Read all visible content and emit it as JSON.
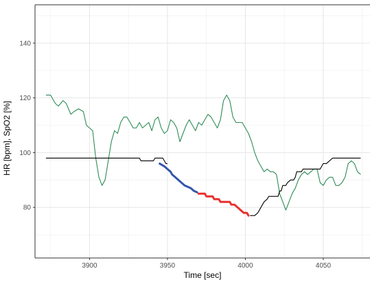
{
  "chart_data": {
    "type": "line",
    "title": "",
    "xlabel": "Time [sec]",
    "ylabel": "HR [bpm], SpO2 [%]",
    "xlim": [
      3865,
      4080
    ],
    "ylim": [
      61.5,
      154
    ],
    "x_ticks": [
      3900,
      3950,
      4000,
      4050
    ],
    "y_ticks": [
      80,
      100,
      120,
      140
    ],
    "grid": true,
    "legend": "none",
    "colors": {
      "hr": "#2e8b57",
      "spo2": "#000000",
      "decline_early": "#3355aa",
      "decline_late": "#e8312f",
      "grid_major": "#e6e6e6",
      "grid_minor": "#f2f2f2",
      "axis": "#333333"
    },
    "series": [
      {
        "color": "#2e8b57",
        "points": [
          [
            3872,
            121
          ],
          [
            3875,
            121
          ],
          [
            3878,
            118
          ],
          [
            3880,
            117
          ],
          [
            3883,
            119
          ],
          [
            3885,
            118
          ],
          [
            3888,
            114
          ],
          [
            3890,
            115
          ],
          [
            3893,
            116
          ],
          [
            3896,
            115
          ],
          [
            3898,
            110
          ],
          [
            3900,
            109
          ],
          [
            3902,
            108
          ],
          [
            3904,
            98
          ],
          [
            3906,
            91
          ],
          [
            3908,
            88
          ],
          [
            3910,
            90
          ],
          [
            3912,
            97
          ],
          [
            3914,
            104
          ],
          [
            3916,
            108
          ],
          [
            3918,
            107
          ],
          [
            3920,
            111
          ],
          [
            3922,
            113
          ],
          [
            3924,
            113
          ],
          [
            3926,
            111
          ],
          [
            3928,
            109
          ],
          [
            3930,
            109
          ],
          [
            3932,
            111
          ],
          [
            3934,
            109
          ],
          [
            3936,
            110
          ],
          [
            3938,
            111
          ],
          [
            3940,
            108
          ],
          [
            3942,
            112
          ],
          [
            3944,
            113
          ],
          [
            3946,
            109
          ],
          [
            3948,
            107
          ],
          [
            3950,
            108
          ],
          [
            3952,
            112
          ],
          [
            3954,
            111
          ],
          [
            3956,
            109
          ],
          [
            3958,
            104
          ],
          [
            3960,
            107
          ],
          [
            3962,
            110
          ],
          [
            3964,
            112
          ],
          [
            3966,
            110
          ],
          [
            3968,
            108
          ],
          [
            3970,
            111
          ],
          [
            3972,
            110
          ],
          [
            3974,
            112
          ],
          [
            3976,
            114
          ],
          [
            3978,
            113
          ],
          [
            3980,
            111
          ],
          [
            3982,
            109
          ],
          [
            3984,
            112
          ],
          [
            3986,
            119
          ],
          [
            3988,
            121
          ],
          [
            3990,
            119
          ],
          [
            3992,
            113
          ],
          [
            3994,
            111
          ],
          [
            3996,
            111
          ],
          [
            3998,
            111
          ],
          [
            4000,
            109
          ],
          [
            4002,
            107
          ],
          [
            4004,
            104
          ],
          [
            4006,
            100
          ],
          [
            4008,
            97
          ],
          [
            4010,
            95
          ],
          [
            4012,
            93
          ],
          [
            4014,
            94
          ],
          [
            4016,
            93
          ],
          [
            4018,
            93
          ],
          [
            4020,
            92
          ],
          [
            4022,
            85
          ],
          [
            4024,
            82
          ],
          [
            4026,
            79
          ],
          [
            4028,
            82
          ],
          [
            4030,
            85
          ],
          [
            4032,
            87
          ],
          [
            4034,
            90
          ],
          [
            4036,
            92
          ],
          [
            4038,
            93
          ],
          [
            4040,
            92
          ],
          [
            4042,
            93
          ],
          [
            4044,
            94
          ],
          [
            4046,
            94
          ],
          [
            4048,
            89
          ],
          [
            4050,
            88
          ],
          [
            4052,
            90
          ],
          [
            4054,
            91
          ],
          [
            4056,
            91
          ],
          [
            4058,
            88
          ],
          [
            4060,
            88
          ],
          [
            4062,
            89
          ],
          [
            4064,
            91
          ],
          [
            4066,
            96
          ],
          [
            4068,
            97
          ],
          [
            4070,
            96
          ],
          [
            4072,
            93
          ],
          [
            4074,
            92
          ]
        ]
      },
      {
        "color": "#000000",
        "points": [
          [
            3872,
            98
          ],
          [
            3932,
            98
          ],
          [
            3933,
            97
          ],
          [
            3941,
            97
          ],
          [
            3942,
            98
          ],
          [
            3947,
            98
          ],
          [
            3949,
            96
          ],
          [
            3950,
            96
          ]
        ]
      },
      {
        "color": "#3355aa",
        "points": [
          [
            3945,
            96
          ],
          [
            3948,
            95
          ],
          [
            3950,
            94
          ],
          [
            3952,
            93
          ],
          [
            3953,
            92
          ],
          [
            3955,
            91
          ],
          [
            3957,
            90
          ],
          [
            3959,
            89
          ],
          [
            3961,
            88
          ],
          [
            3963,
            87.5
          ],
          [
            3965,
            87
          ],
          [
            3967,
            86
          ],
          [
            3969,
            85.5
          ]
        ]
      },
      {
        "color": "#e8312f",
        "points": [
          [
            3970,
            85
          ],
          [
            3974,
            85
          ],
          [
            3975,
            84
          ],
          [
            3979,
            84
          ],
          [
            3980,
            83
          ],
          [
            3983,
            83
          ],
          [
            3984,
            82
          ],
          [
            3990,
            82
          ],
          [
            3991,
            81
          ],
          [
            3993,
            81
          ],
          [
            3995,
            80
          ],
          [
            3997,
            79
          ],
          [
            3999,
            78
          ],
          [
            4001,
            78
          ],
          [
            4002,
            77
          ]
        ]
      },
      {
        "color": "#000000",
        "points": [
          [
            4003,
            77
          ],
          [
            4006,
            77
          ],
          [
            4008,
            78
          ],
          [
            4010,
            80
          ],
          [
            4012,
            82
          ],
          [
            4014,
            83
          ],
          [
            4015,
            84
          ],
          [
            4021,
            84
          ],
          [
            4022,
            86
          ],
          [
            4023,
            86
          ],
          [
            4024,
            88
          ],
          [
            4026,
            88
          ],
          [
            4027,
            89
          ],
          [
            4029,
            90
          ],
          [
            4031,
            90
          ],
          [
            4032,
            91
          ],
          [
            4033,
            93
          ],
          [
            4036,
            93
          ],
          [
            4037,
            94
          ],
          [
            4048,
            94
          ],
          [
            4049,
            95
          ],
          [
            4050,
            96
          ],
          [
            4052,
            96
          ],
          [
            4054,
            97
          ],
          [
            4056,
            98
          ],
          [
            4074,
            98
          ]
        ]
      }
    ]
  }
}
